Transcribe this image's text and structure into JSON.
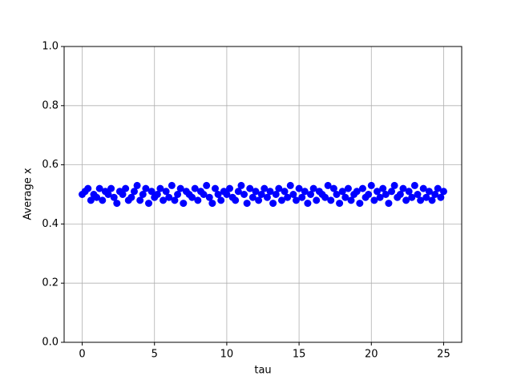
{
  "chart_data": {
    "type": "scatter",
    "xlabel": "tau",
    "ylabel": "Average x",
    "color": "#0000ff",
    "grid": true,
    "xlim": [
      -1.25,
      26.25
    ],
    "xticks": [
      0,
      5,
      10,
      15,
      20,
      25
    ],
    "ylim": [
      0,
      1
    ],
    "yticks": [
      {
        "value": 0,
        "label": "0.0"
      },
      0.2,
      0.4,
      0.6,
      0.8,
      {
        "value": 1,
        "label": "1.0"
      }
    ],
    "x": [
      0,
      0.2,
      0.4,
      0.6,
      0.8,
      1,
      1.2,
      1.4,
      1.6,
      1.8,
      2,
      2.2,
      2.4,
      2.6,
      2.8,
      3,
      3.2,
      3.4,
      3.6,
      3.8,
      4,
      4.2,
      4.4,
      4.6,
      4.8,
      5,
      5.2,
      5.4,
      5.6,
      5.8,
      6,
      6.2,
      6.4,
      6.6,
      6.8,
      7,
      7.2,
      7.4,
      7.6,
      7.8,
      8,
      8.2,
      8.4,
      8.6,
      8.8,
      9,
      9.2,
      9.4,
      9.6,
      9.8,
      10,
      10.2,
      10.4,
      10.6,
      10.8,
      11,
      11.2,
      11.4,
      11.6,
      11.8,
      12,
      12.2,
      12.4,
      12.6,
      12.8,
      13,
      13.2,
      13.4,
      13.6,
      13.8,
      14,
      14.2,
      14.4,
      14.6,
      14.8,
      15,
      15.2,
      15.4,
      15.6,
      15.8,
      16,
      16.2,
      16.4,
      16.6,
      16.8,
      17,
      17.2,
      17.4,
      17.6,
      17.8,
      18,
      18.2,
      18.4,
      18.6,
      18.8,
      19,
      19.2,
      19.4,
      19.6,
      19.8,
      20,
      20.2,
      20.4,
      20.6,
      20.8,
      21,
      21.2,
      21.4,
      21.6,
      21.8,
      22,
      22.2,
      22.4,
      22.6,
      22.8,
      23,
      23.2,
      23.4,
      23.6,
      23.8,
      24,
      24.2,
      24.4,
      24.6,
      24.8,
      25
    ],
    "values": [
      0.5,
      0.51,
      0.52,
      0.48,
      0.5,
      0.49,
      0.52,
      0.48,
      0.51,
      0.5,
      0.52,
      0.49,
      0.47,
      0.51,
      0.5,
      0.52,
      0.48,
      0.49,
      0.51,
      0.53,
      0.48,
      0.5,
      0.52,
      0.47,
      0.51,
      0.49,
      0.5,
      0.52,
      0.48,
      0.51,
      0.49,
      0.53,
      0.48,
      0.5,
      0.52,
      0.47,
      0.51,
      0.5,
      0.49,
      0.52,
      0.48,
      0.51,
      0.5,
      0.53,
      0.49,
      0.47,
      0.52,
      0.5,
      0.48,
      0.51,
      0.5,
      0.52,
      0.49,
      0.48,
      0.51,
      0.53,
      0.5,
      0.47,
      0.52,
      0.49,
      0.51,
      0.48,
      0.5,
      0.52,
      0.49,
      0.51,
      0.47,
      0.5,
      0.52,
      0.48,
      0.51,
      0.49,
      0.53,
      0.5,
      0.48,
      0.52,
      0.49,
      0.51,
      0.47,
      0.5,
      0.52,
      0.48,
      0.51,
      0.5,
      0.49,
      0.53,
      0.48,
      0.52,
      0.5,
      0.47,
      0.51,
      0.49,
      0.52,
      0.48,
      0.5,
      0.51,
      0.47,
      0.52,
      0.49,
      0.5,
      0.53,
      0.48,
      0.51,
      0.49,
      0.52,
      0.5,
      0.47,
      0.51,
      0.53,
      0.49,
      0.5,
      0.52,
      0.48,
      0.51,
      0.49,
      0.53,
      0.5,
      0.48,
      0.52,
      0.49,
      0.51,
      0.48,
      0.5,
      0.52,
      0.49,
      0.51
    ]
  }
}
